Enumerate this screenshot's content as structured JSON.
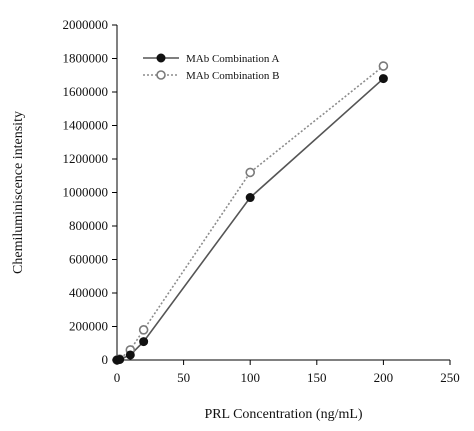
{
  "chart_data": {
    "type": "line",
    "title": "",
    "xlabel": "PRL Concentration (ng/mL)",
    "ylabel": "Chemiluminiscence intensity",
    "xlim": [
      0,
      250
    ],
    "ylim": [
      0,
      2000000
    ],
    "x_ticks": [
      0,
      50,
      100,
      150,
      200,
      250
    ],
    "y_ticks": [
      0,
      200000,
      400000,
      600000,
      800000,
      1000000,
      1200000,
      1400000,
      1600000,
      1800000,
      2000000
    ],
    "x_tick_labels": [
      "0",
      "50",
      "100",
      "150",
      "200",
      "250"
    ],
    "y_tick_labels": [
      "0",
      "200000",
      "400000",
      "600000",
      "800000",
      "1000000",
      "1200000",
      "1400000",
      "1600000",
      "1800000",
      "2000000"
    ],
    "grid": false,
    "legend_position": "top-left",
    "series": [
      {
        "name": "MAb Combination A",
        "marker": "filled-circle",
        "line": "solid",
        "color": "#555555",
        "marker_color": "#111111",
        "x": [
          0,
          2,
          10,
          20,
          100,
          200
        ],
        "y": [
          0,
          3000,
          30000,
          110000,
          970000,
          1680000
        ]
      },
      {
        "name": "MAb Combination B",
        "marker": "open-circle",
        "line": "dotted",
        "color": "#8c8c8c",
        "marker_color": "#7a7a7a",
        "x": [
          0,
          2,
          10,
          20,
          100,
          200
        ],
        "y": [
          0,
          5000,
          60000,
          180000,
          1120000,
          1755000
        ]
      }
    ]
  }
}
